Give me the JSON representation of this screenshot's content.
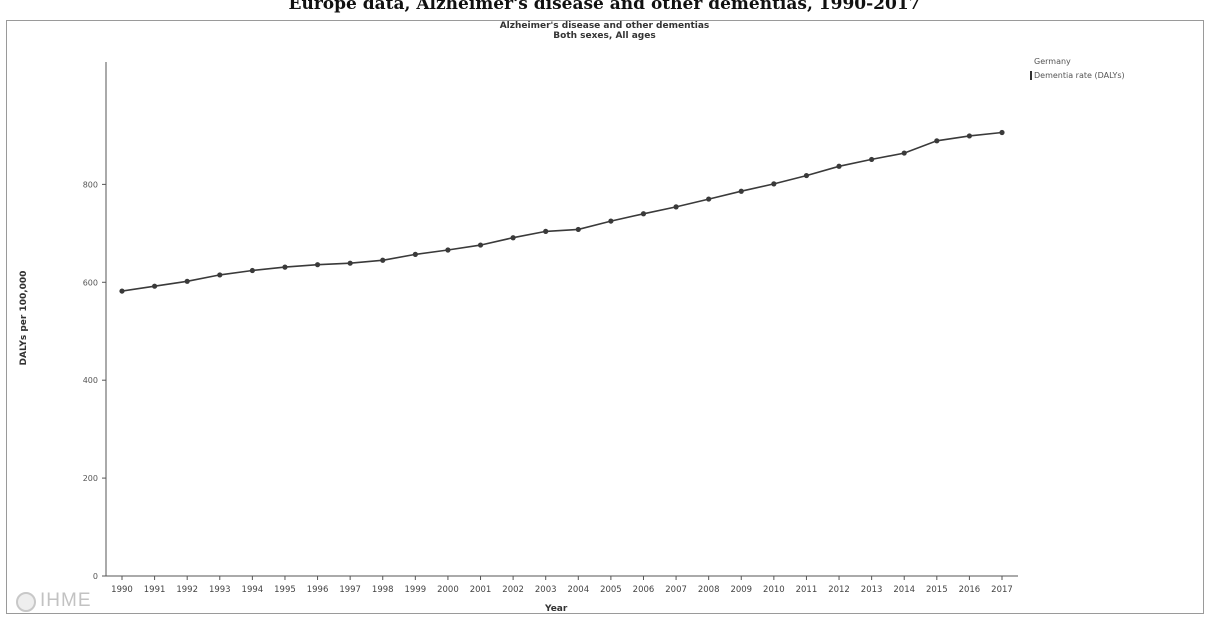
{
  "page": {
    "title": "Europe data, Alzheimer's disease and other dementias, 1990-2017"
  },
  "legend": {
    "items": [
      {
        "label": "Germany",
        "value": "",
        "selected": false
      },
      {
        "label": "Dementia rate (DALYs)",
        "value": "",
        "selected": true
      }
    ]
  },
  "branding": {
    "logo_text": "IHME"
  },
  "colors": {
    "line": "#3a3a3a",
    "axis": "#555555",
    "frame": "#9a9a9a"
  },
  "chart_data": {
    "type": "line",
    "title": "Alzheimer's disease and other dementias",
    "subtitle": "Both sexes, All ages",
    "xlabel": "Year",
    "ylabel": "DALYs per 100,000",
    "x": [
      "1990",
      "1991",
      "1992",
      "1993",
      "1994",
      "1995",
      "1996",
      "1997",
      "1998",
      "1999",
      "2000",
      "2001",
      "2002",
      "2003",
      "2004",
      "2005",
      "2006",
      "2007",
      "2008",
      "2009",
      "2010",
      "2011",
      "2012",
      "2013",
      "2014",
      "2015",
      "2016",
      "2017"
    ],
    "ylim": [
      0,
      1050
    ],
    "yticks": [
      0,
      200,
      400,
      600,
      800
    ],
    "ytick_labels": [
      "0",
      "200",
      "400",
      "600",
      "800"
    ],
    "grid": false,
    "legend_position": "top-right",
    "series": [
      {
        "name": "Dementia rate (DALYs)",
        "values": [
          582,
          592,
          602,
          615,
          624,
          631,
          636,
          639,
          645,
          657,
          666,
          676,
          691,
          704,
          708,
          725,
          740,
          754,
          770,
          786,
          801,
          818,
          837,
          851,
          864,
          889,
          899,
          906
        ]
      }
    ]
  }
}
